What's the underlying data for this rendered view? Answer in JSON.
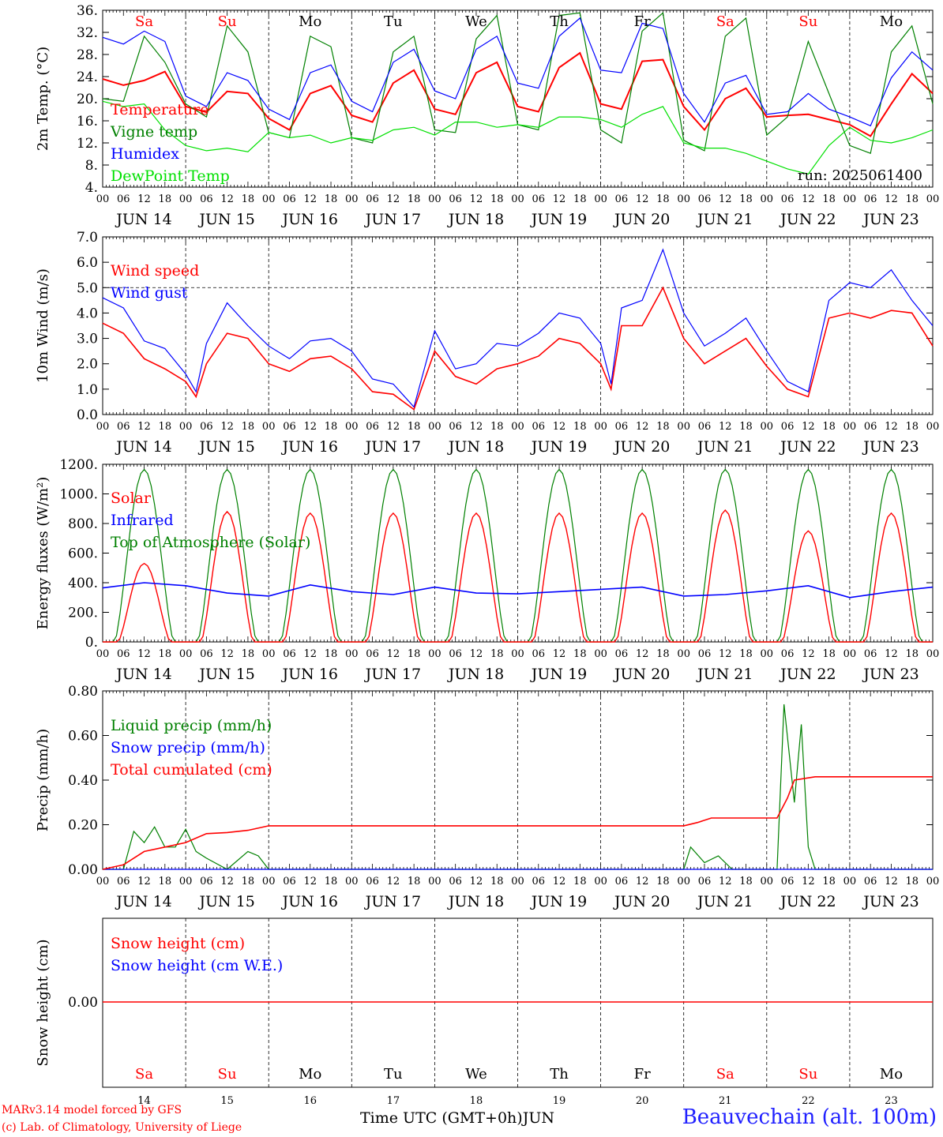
{
  "days": [
    "Sa",
    "Su",
    "Mo",
    "Tu",
    "We",
    "Th",
    "Fr",
    "Sa",
    "Su",
    "Mo"
  ],
  "day_colors": [
    "#ff0000",
    "#ff0000",
    "#000000",
    "#000000",
    "#000000",
    "#000000",
    "#000000",
    "#ff0000",
    "#ff0000",
    "#000000"
  ],
  "dates": [
    "JUN 14",
    "JUN 15",
    "JUN 16",
    "JUN 17",
    "JUN 18",
    "JUN 19",
    "JUN 20",
    "JUN 21",
    "JUN 22",
    "JUN 23"
  ],
  "day_numbers": [
    "14",
    "15",
    "16",
    "17",
    "18",
    "19",
    "20",
    "21",
    "22",
    "23"
  ],
  "hour_ticks": [
    "00",
    "06",
    "12",
    "18"
  ],
  "run_label": "run: 2025061400",
  "footer": {
    "model": "MARv3.14 model forced by GFS",
    "lab": "(c) Lab. of Climatology, University of Liege",
    "axis": "Time UTC (GMT+0h)",
    "month": "JUN",
    "station": "Beauvechain (alt. 100m)"
  },
  "chart_data": [
    {
      "type": "line",
      "ylabel": "2m Temp. (°C)",
      "ylim": [
        4,
        38
      ],
      "yticks": [
        "4.",
        "8.",
        "12.",
        "16.",
        "20.",
        "24.",
        "28.",
        "32.",
        "36."
      ],
      "x_unit": "hours from JUN 14 00 UTC",
      "series": [
        {
          "name": "Temperature",
          "color": "#ff0000",
          "x": [
            0,
            6,
            12,
            18,
            24,
            30,
            36,
            42,
            48,
            54,
            60,
            66,
            72,
            78,
            84,
            90,
            96,
            102,
            108,
            114,
            120,
            126,
            132,
            138,
            144,
            150,
            156,
            162,
            168,
            174,
            180,
            186,
            192,
            198,
            204,
            210,
            216,
            222,
            228,
            234,
            240
          ],
          "values": [
            24.8,
            23.6,
            24.5,
            26.2,
            19.5,
            18.4,
            22.4,
            22.0,
            17.2,
            15.0,
            22.0,
            23.5,
            17.8,
            16.5,
            24.0,
            26.5,
            19.0,
            18.0,
            26.0,
            28.0,
            19.5,
            18.5,
            27.0,
            29.8,
            20.0,
            19.0,
            28.2,
            28.5,
            19.5,
            15.0,
            21.0,
            23.0,
            17.5,
            17.8,
            18.0,
            17.0,
            16.0,
            13.8,
            20.0,
            25.8,
            22.0
          ]
        },
        {
          "name": "Vigne temp",
          "color": "#008000",
          "x": [
            0,
            6,
            12,
            18,
            24,
            30,
            36,
            42,
            48,
            54,
            60,
            66,
            72,
            78,
            84,
            90,
            96,
            102,
            108,
            114,
            120,
            126,
            132,
            138,
            144,
            150,
            156,
            162,
            168,
            174,
            180,
            186,
            192,
            198,
            204,
            210,
            216,
            222,
            228,
            234,
            240
          ],
          "values": [
            21.0,
            20.5,
            33.0,
            28.0,
            20.0,
            17.5,
            35.0,
            30.0,
            14.5,
            13.5,
            33.0,
            31.0,
            13.5,
            12.5,
            30.0,
            33.0,
            15.0,
            14.5,
            32.5,
            37.0,
            16.0,
            15.0,
            37.0,
            37.5,
            15.0,
            12.5,
            34.0,
            37.5,
            13.0,
            11.0,
            33.0,
            36.5,
            14.0,
            17.5,
            32.0,
            22.0,
            12.0,
            10.5,
            30.0,
            35.0,
            20.0
          ]
        },
        {
          "name": "Humidex",
          "color": "#0000ff",
          "x": [
            0,
            6,
            12,
            18,
            24,
            30,
            36,
            42,
            48,
            54,
            60,
            66,
            72,
            78,
            84,
            90,
            96,
            102,
            108,
            114,
            120,
            126,
            132,
            138,
            144,
            150,
            156,
            162,
            168,
            174,
            180,
            186,
            192,
            198,
            204,
            210,
            216,
            222,
            228,
            234,
            240
          ],
          "values": [
            32.8,
            31.5,
            34.0,
            32.0,
            21.5,
            19.5,
            26.0,
            24.5,
            19.0,
            17.0,
            26.0,
            27.5,
            20.5,
            18.5,
            28.0,
            30.5,
            22.5,
            21.0,
            30.5,
            33.0,
            24.0,
            23.0,
            33.0,
            36.5,
            26.5,
            26.0,
            35.5,
            34.5,
            22.0,
            16.5,
            24.0,
            25.5,
            18.0,
            18.5,
            22.0,
            19.0,
            17.5,
            15.8,
            25.0,
            30.0,
            26.5
          ]
        },
        {
          "name": "DewPoint Temp",
          "color": "#00e000",
          "x": [
            0,
            6,
            12,
            18,
            24,
            30,
            36,
            42,
            48,
            54,
            60,
            66,
            72,
            78,
            84,
            90,
            96,
            102,
            108,
            114,
            120,
            126,
            132,
            138,
            144,
            150,
            156,
            162,
            168,
            174,
            180,
            186,
            192,
            198,
            204,
            210,
            216,
            222,
            228,
            234,
            240
          ],
          "values": [
            20.5,
            19.5,
            20.0,
            15.0,
            12.0,
            11.0,
            11.5,
            10.8,
            14.5,
            13.5,
            14.0,
            12.5,
            13.5,
            13.0,
            15.0,
            15.5,
            14.0,
            16.5,
            16.5,
            15.5,
            16.0,
            15.5,
            17.5,
            17.5,
            17.0,
            15.5,
            18.0,
            19.5,
            12.5,
            11.5,
            11.5,
            10.5,
            9.0,
            7.5,
            6.5,
            12.0,
            15.5,
            13.0,
            12.5,
            13.5,
            15.0
          ]
        }
      ]
    },
    {
      "type": "line",
      "ylabel": "10m Wind (m/s)",
      "ylim": [
        0,
        7
      ],
      "yticks": [
        "0.0",
        "1.0",
        "2.0",
        "3.0",
        "4.0",
        "5.0",
        "6.0",
        "7.0"
      ],
      "reference_line": 5.0,
      "x_unit": "hours from JUN 14 00 UTC",
      "series": [
        {
          "name": "Wind speed",
          "color": "#ff0000",
          "x": [
            0,
            6,
            12,
            18,
            24,
            27,
            30,
            36,
            42,
            48,
            54,
            60,
            66,
            72,
            78,
            84,
            90,
            96,
            102,
            108,
            114,
            120,
            126,
            132,
            138,
            144,
            147,
            150,
            156,
            162,
            168,
            174,
            180,
            186,
            192,
            198,
            204,
            210,
            216,
            222,
            228,
            234,
            240
          ],
          "values": [
            3.6,
            3.2,
            2.2,
            1.8,
            1.3,
            0.7,
            2.0,
            3.2,
            3.0,
            2.0,
            1.7,
            2.2,
            2.3,
            1.8,
            0.9,
            0.8,
            0.2,
            2.5,
            1.5,
            1.2,
            1.8,
            2.0,
            2.3,
            3.0,
            2.8,
            2.0,
            1.0,
            3.5,
            3.5,
            5.0,
            3.0,
            2.0,
            2.5,
            3.0,
            1.9,
            1.0,
            0.7,
            3.8,
            4.0,
            3.8,
            4.1,
            4.0,
            2.7
          ]
        },
        {
          "name": "Wind gust",
          "color": "#0000ff",
          "x": [
            0,
            6,
            12,
            18,
            24,
            27,
            30,
            36,
            42,
            48,
            54,
            60,
            66,
            72,
            78,
            84,
            90,
            96,
            102,
            108,
            114,
            120,
            126,
            132,
            138,
            144,
            147,
            150,
            156,
            162,
            168,
            174,
            180,
            186,
            192,
            198,
            204,
            210,
            216,
            222,
            228,
            234,
            240
          ],
          "values": [
            4.6,
            4.2,
            2.9,
            2.6,
            1.6,
            0.9,
            2.8,
            4.4,
            3.5,
            2.7,
            2.2,
            2.9,
            3.0,
            2.5,
            1.4,
            1.2,
            0.3,
            3.3,
            1.8,
            2.0,
            2.8,
            2.7,
            3.2,
            4.0,
            3.8,
            2.8,
            1.2,
            4.2,
            4.5,
            6.5,
            4.0,
            2.7,
            3.2,
            3.8,
            2.5,
            1.3,
            0.9,
            4.5,
            5.2,
            5.0,
            5.7,
            4.5,
            3.5
          ]
        }
      ]
    },
    {
      "type": "line",
      "ylabel": "Energy fluxes (W/m²)",
      "ylim": [
        0,
        1200
      ],
      "yticks": [
        "0.",
        "200.",
        "400.",
        "600.",
        "800.",
        "1000.",
        "1200."
      ],
      "series": [
        {
          "name": "Solar",
          "color": "#ff0000",
          "daily_peaks": [
            530,
            880,
            870,
            870,
            870,
            870,
            870,
            890,
            750,
            870
          ]
        },
        {
          "name": "Infrared",
          "color": "#0000ff",
          "x": [
            0,
            12,
            24,
            36,
            48,
            60,
            72,
            84,
            96,
            108,
            120,
            132,
            144,
            156,
            168,
            180,
            192,
            204,
            216,
            228,
            240
          ],
          "values": [
            365,
            400,
            380,
            330,
            310,
            385,
            340,
            320,
            370,
            330,
            325,
            340,
            355,
            370,
            310,
            320,
            345,
            380,
            300,
            340,
            370
          ]
        },
        {
          "name": "Top of Atmosphere (Solar)",
          "color": "#008000",
          "daily_peak": 1165
        }
      ]
    },
    {
      "type": "line",
      "ylabel": "Precip (mm/h)",
      "ylim": [
        0,
        0.8
      ],
      "yticks": [
        "0.00",
        "0.20",
        "0.40",
        "0.60",
        "0.80"
      ],
      "series": [
        {
          "name": "Liquid precip (mm/h)",
          "color": "#008000",
          "x": [
            0,
            6,
            9,
            12,
            15,
            18,
            21,
            24,
            27,
            30,
            36,
            42,
            45,
            48,
            168,
            170,
            174,
            178,
            182,
            195,
            197,
            200,
            202,
            204,
            206,
            240
          ],
          "values": [
            0,
            0,
            0.17,
            0.12,
            0.19,
            0.1,
            0.1,
            0.18,
            0.08,
            0.05,
            0,
            0.08,
            0.06,
            0,
            0,
            0.1,
            0.03,
            0.06,
            0,
            0,
            0.74,
            0.3,
            0.65,
            0.1,
            0,
            0
          ]
        },
        {
          "name": "Snow precip (mm/h)",
          "color": "#0000ff",
          "x": [
            0,
            240
          ],
          "values": [
            0,
            0
          ]
        },
        {
          "name": "Total cumulated (cm)",
          "color": "#ff0000",
          "x": [
            0,
            6,
            12,
            18,
            24,
            30,
            36,
            42,
            48,
            168,
            172,
            176,
            192,
            195,
            198,
            200,
            206,
            240
          ],
          "values": [
            0,
            0.02,
            0.08,
            0.1,
            0.12,
            0.16,
            0.165,
            0.175,
            0.195,
            0.195,
            0.21,
            0.23,
            0.23,
            0.23,
            0.32,
            0.4,
            0.415,
            0.415
          ]
        }
      ]
    },
    {
      "type": "line",
      "ylabel": "Snow height (cm)",
      "yticks": [
        "0.00"
      ],
      "series": [
        {
          "name": "Snow height (cm)",
          "color": "#ff0000",
          "x": [
            0,
            240
          ],
          "values": [
            0,
            0
          ]
        },
        {
          "name": "Snow height (cm W.E.)",
          "color": "#0000ff",
          "x": [
            0,
            240
          ],
          "values": [
            0,
            0
          ]
        }
      ]
    }
  ]
}
